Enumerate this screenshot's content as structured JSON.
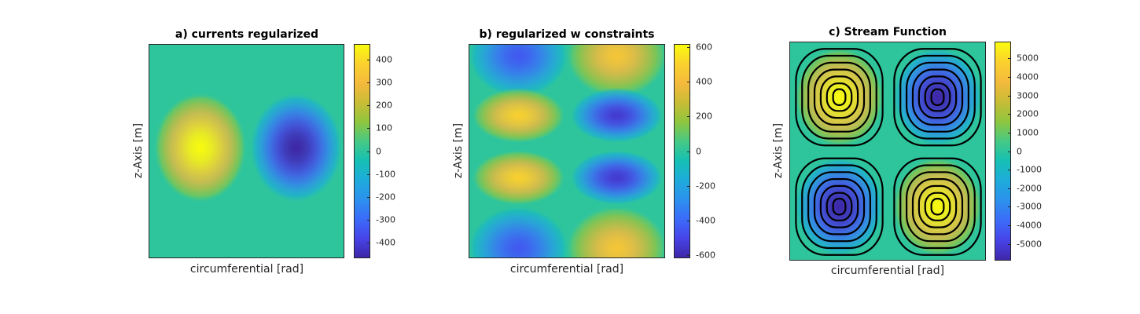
{
  "colormap": [
    "#3e26a8",
    "#4744e8",
    "#3b6cf9",
    "#2c91ed",
    "#1eabdb",
    "#16c0b4",
    "#46c985",
    "#8fc63e",
    "#c8bc36",
    "#f4ba3d",
    "#fbd12e",
    "#f9fb0e"
  ],
  "chart_data": [
    {
      "type": "heatmap",
      "title": "a) currents regularized",
      "xlabel": "circumferential [rad]",
      "ylabel": "z-Axis [m]",
      "colorbar_range": [
        -470,
        470
      ],
      "colorbar_ticks": [
        400,
        300,
        200,
        100,
        0,
        -100,
        -200,
        -300,
        -400
      ],
      "extrema": [
        {
          "position": "center-left",
          "value": 470
        },
        {
          "position": "center-right",
          "value": -470
        }
      ]
    },
    {
      "type": "heatmap",
      "title": "b) regularized w constraints",
      "xlabel": "circumferential [rad]",
      "ylabel": "z-Axis [m]",
      "colorbar_range": [
        -620,
        620
      ],
      "colorbar_ticks": [
        600,
        400,
        200,
        0,
        -200,
        -400,
        -600
      ],
      "extrema": [
        {
          "position": "top-left",
          "value": -450
        },
        {
          "position": "top-right",
          "value": 450
        },
        {
          "position": "upper-middle-left",
          "value": 500
        },
        {
          "position": "upper-middle-right",
          "value": -550
        },
        {
          "position": "lower-middle-left",
          "value": 500
        },
        {
          "position": "lower-middle-right",
          "value": -550
        },
        {
          "position": "bottom-left",
          "value": -450
        },
        {
          "position": "bottom-right",
          "value": 450
        }
      ]
    },
    {
      "type": "heatmap",
      "title": "c) Stream Function",
      "xlabel": "circumferential [rad]",
      "ylabel": "z-Axis [m]",
      "colorbar_range": [
        -5900,
        5900
      ],
      "colorbar_ticks": [
        5000,
        4000,
        3000,
        2000,
        1000,
        0,
        -1000,
        -2000,
        -3000,
        -4000,
        -5000
      ],
      "contour_lines": true,
      "extrema": [
        {
          "position": "top-left",
          "value": 5900
        },
        {
          "position": "top-right",
          "value": -5900
        },
        {
          "position": "bottom-left",
          "value": -5900
        },
        {
          "position": "bottom-right",
          "value": 5900
        }
      ]
    }
  ]
}
